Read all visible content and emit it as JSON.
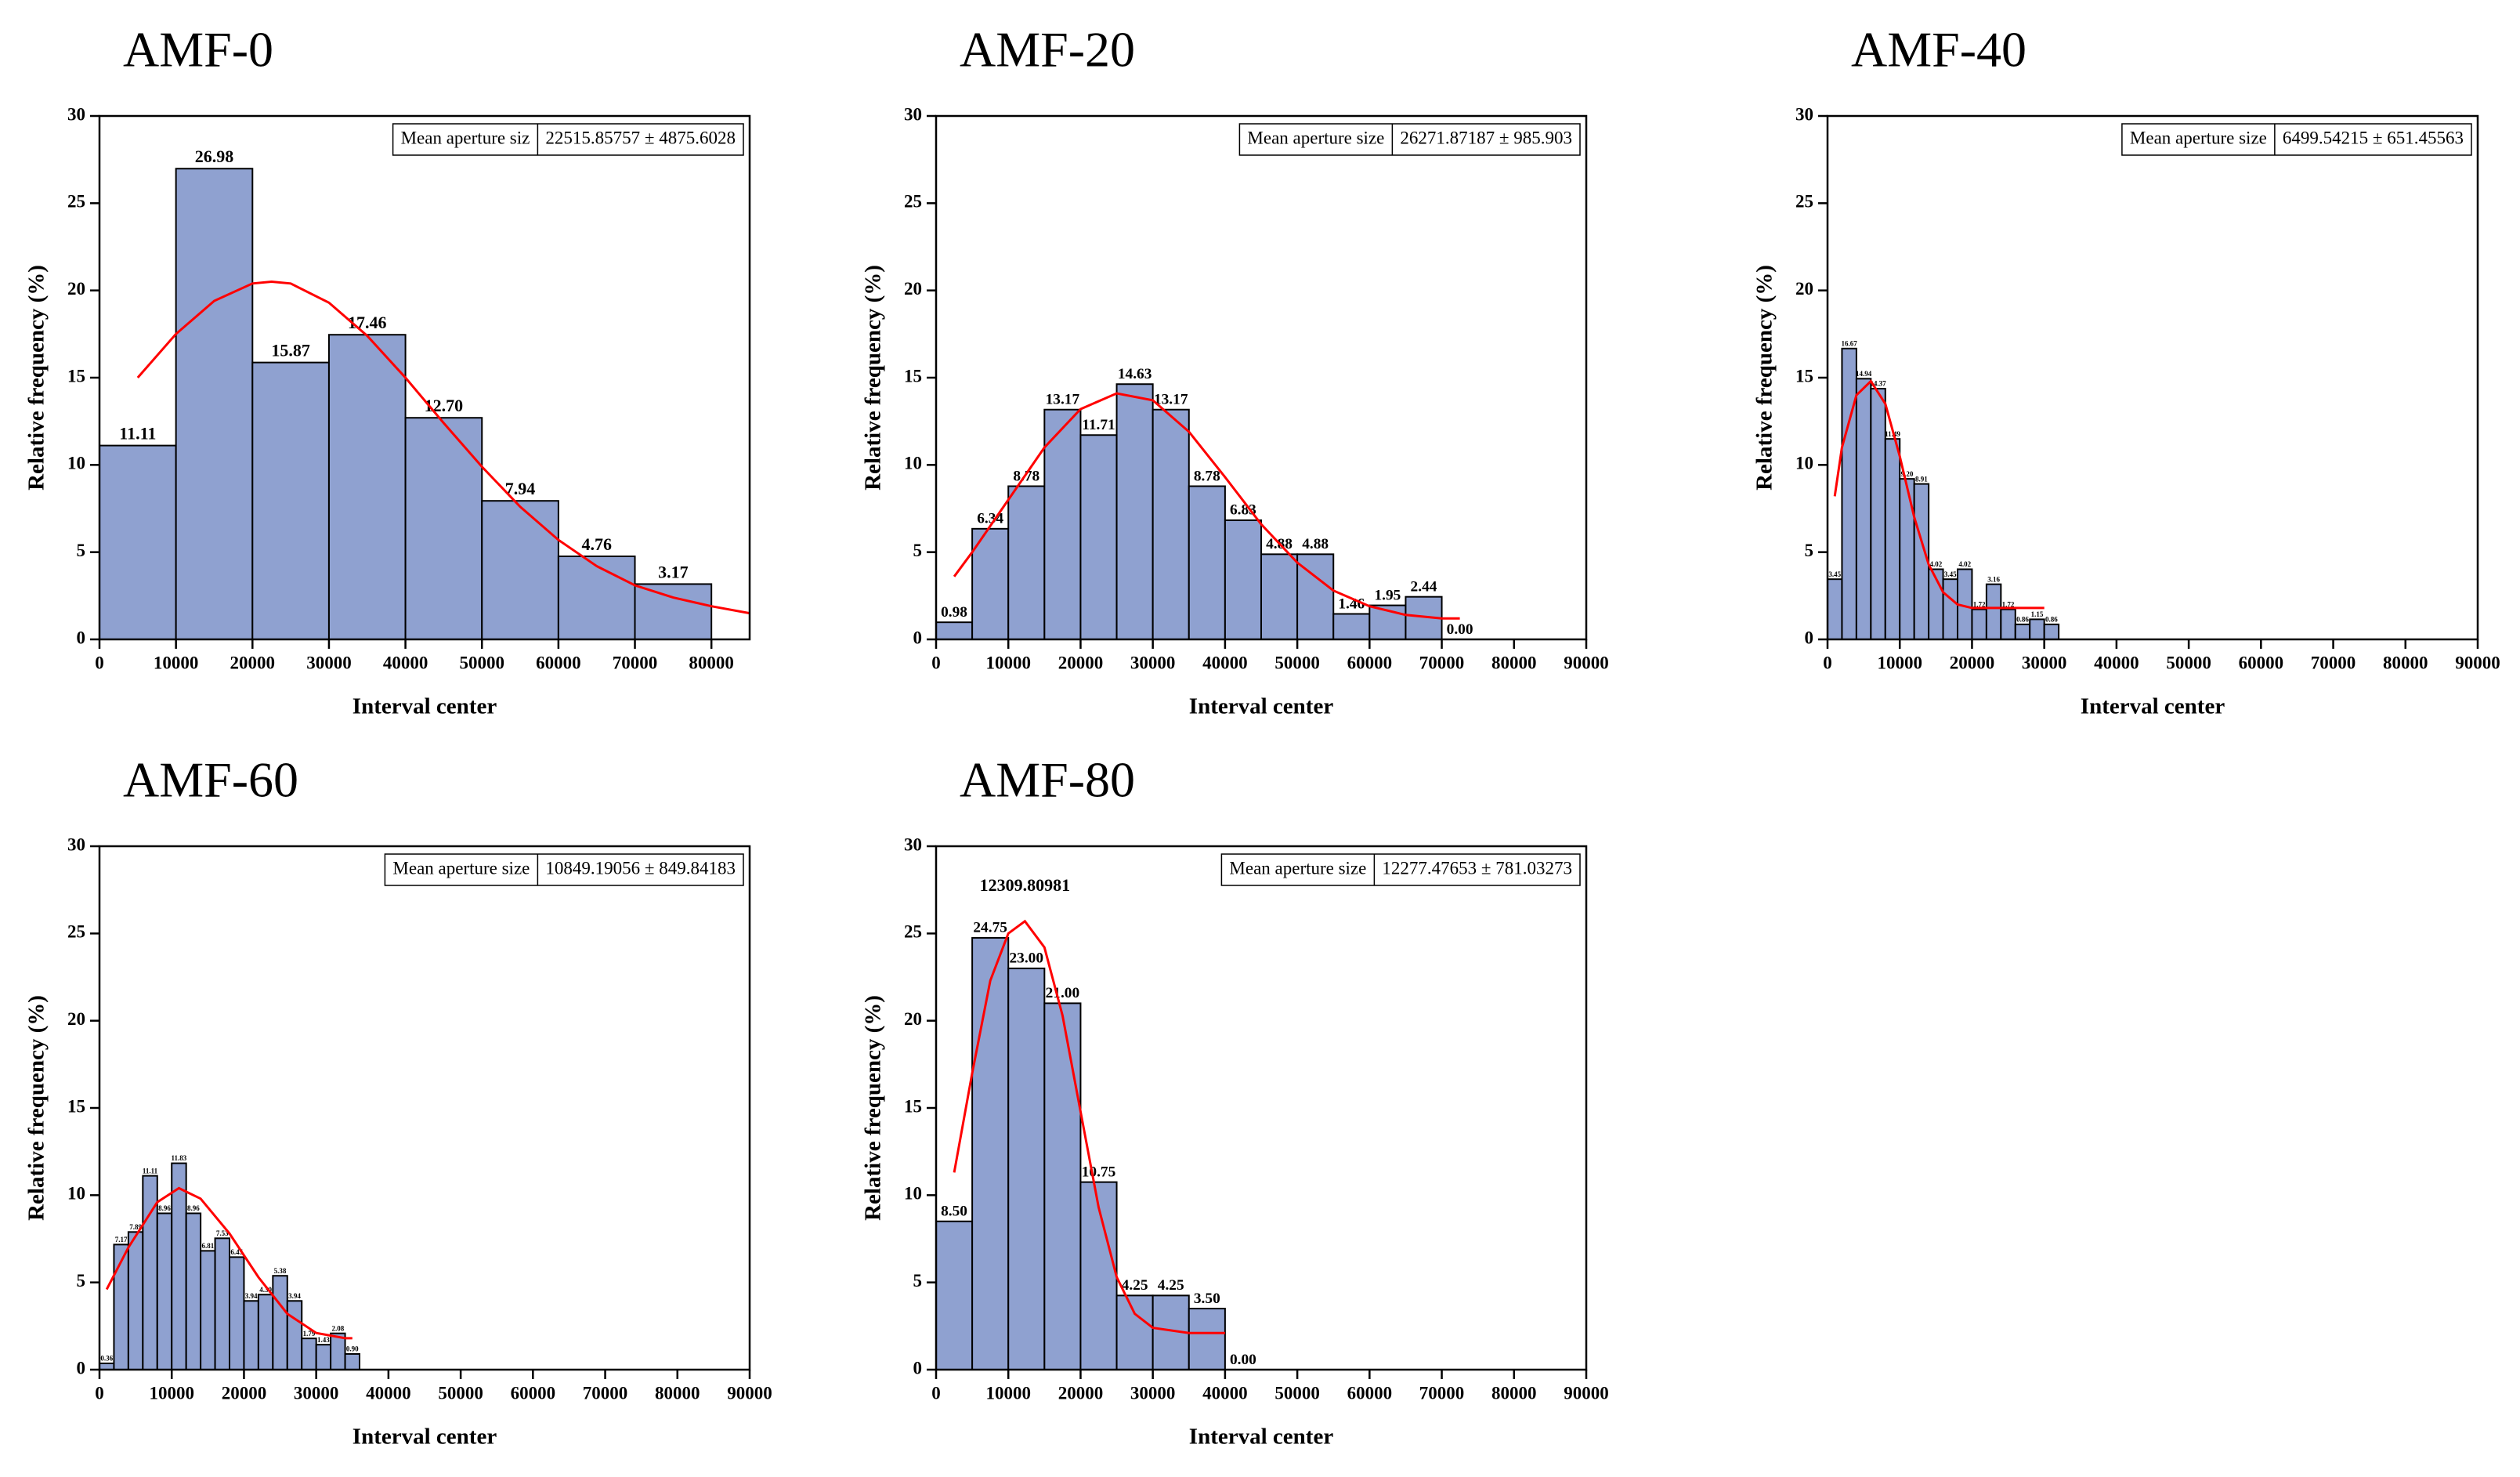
{
  "chart_data": [
    {
      "type": "histogram",
      "title": "AMF-0",
      "xlabel": "Interval center",
      "ylabel": "Relative frequency (%)",
      "bins": [
        0,
        10000,
        20000,
        30000,
        40000,
        50000,
        60000,
        70000,
        80000
      ],
      "values": [
        11.11,
        26.98,
        15.87,
        17.46,
        12.7,
        7.94,
        4.76,
        3.17
      ],
      "value_labels": [
        "11.11",
        "26.98",
        "15.87",
        "17.46",
        "12.70",
        "7.94",
        "4.76",
        "3.17"
      ],
      "color": "#8fa1d0",
      "xlim": [
        0,
        85000
      ],
      "xticks": [
        0,
        10000,
        20000,
        30000,
        40000,
        50000,
        60000,
        70000,
        80000
      ],
      "ylim": [
        0,
        30
      ],
      "yticks": [
        0,
        5,
        10,
        15,
        20,
        25,
        30
      ],
      "annotation": [
        "Mean aperture siz",
        "22515.85757 ± 4875.6028"
      ],
      "fit": {
        "color": "#ff0000",
        "x": [
          5000,
          10000,
          15000,
          20000,
          22500,
          25000,
          30000,
          35000,
          40000,
          45000,
          50000,
          55000,
          60000,
          65000,
          70000,
          75000,
          80000,
          85000
        ],
        "y": [
          15.0,
          17.5,
          19.4,
          20.4,
          20.5,
          20.4,
          19.3,
          17.4,
          15.0,
          12.4,
          9.9,
          7.6,
          5.7,
          4.2,
          3.1,
          2.4,
          1.9,
          1.5
        ]
      }
    },
    {
      "type": "histogram",
      "title": "AMF-20",
      "xlabel": "Interval center",
      "ylabel": "Relative frequency (%)",
      "bins": [
        0,
        5000,
        10000,
        15000,
        20000,
        25000,
        30000,
        35000,
        40000,
        45000,
        50000,
        55000,
        60000,
        65000,
        70000,
        75000
      ],
      "values": [
        0.98,
        6.34,
        8.78,
        13.17,
        11.71,
        14.63,
        13.17,
        8.78,
        6.83,
        4.88,
        4.88,
        1.46,
        1.95,
        2.44,
        0.0
      ],
      "value_labels": [
        "0.98",
        "6.34",
        "8.78",
        "13.17",
        "11.71",
        "14.63",
        "13.17",
        "8.78",
        "6.83",
        "4.88",
        "4.88",
        "1.46",
        "1.95",
        "2.44",
        "0.00"
      ],
      "color": "#8fa1d0",
      "xlim": [
        0,
        90000
      ],
      "xticks": [
        0,
        10000,
        20000,
        30000,
        40000,
        50000,
        60000,
        70000,
        80000,
        90000
      ],
      "ylim": [
        0,
        30
      ],
      "yticks": [
        0,
        5,
        10,
        15,
        20,
        25,
        30
      ],
      "annotation": [
        "Mean aperture size",
        "26271.87187 ± 985.903"
      ],
      "fit": {
        "color": "#ff0000",
        "x": [
          2500,
          5000,
          10000,
          15000,
          20000,
          25000,
          30000,
          35000,
          40000,
          45000,
          50000,
          55000,
          60000,
          65000,
          70000,
          72500
        ],
        "y": [
          3.6,
          5.0,
          8.0,
          11.0,
          13.2,
          14.1,
          13.7,
          11.9,
          9.3,
          6.6,
          4.4,
          2.8,
          1.9,
          1.4,
          1.2,
          1.2
        ]
      }
    },
    {
      "type": "histogram",
      "title": "AMF-40",
      "xlabel": "Interval center",
      "ylabel": "Relative frequency (%)",
      "bins": [
        0,
        2000,
        4000,
        6000,
        8000,
        10000,
        12000,
        14000,
        16000,
        18000,
        20000,
        22000,
        24000,
        26000,
        28000,
        30000,
        32000
      ],
      "values": [
        3.45,
        16.67,
        14.94,
        14.37,
        11.49,
        9.2,
        8.91,
        4.02,
        3.45,
        4.02,
        1.72,
        3.16,
        1.72,
        0.86,
        1.15,
        0.86
      ],
      "value_labels": [
        "3.45",
        "16.67",
        "14.94",
        "14.37",
        "11.49",
        "9.20",
        "8.91",
        "4.02",
        "3.45",
        "4.02",
        "1.72",
        "3.16",
        "1.72",
        "0.86",
        "1.15",
        "0.86"
      ],
      "color": "#8fa1d0",
      "xlim": [
        0,
        90000
      ],
      "xticks": [
        0,
        10000,
        20000,
        30000,
        40000,
        50000,
        60000,
        70000,
        80000,
        90000
      ],
      "ylim": [
        0,
        30
      ],
      "yticks": [
        0,
        5,
        10,
        15,
        20,
        25,
        30
      ],
      "annotation": [
        "Mean aperture size",
        "6499.54215 ± 651.45563"
      ],
      "fit": {
        "color": "#ff0000",
        "x": [
          1000,
          2000,
          4000,
          6000,
          8000,
          10000,
          12000,
          14000,
          16000,
          18000,
          20000,
          25000,
          30000
        ],
        "y": [
          8.2,
          11.0,
          14.0,
          14.8,
          13.5,
          10.5,
          7.0,
          4.3,
          2.7,
          2.0,
          1.8,
          1.8,
          1.8
        ]
      }
    },
    {
      "type": "histogram",
      "title": "AMF-60",
      "xlabel": "Interval center",
      "ylabel": "Relative frequency (%)",
      "bins": [
        0,
        2000,
        4000,
        6000,
        8000,
        10000,
        12000,
        14000,
        16000,
        18000,
        20000,
        22000,
        24000,
        26000,
        28000,
        30000,
        32000,
        34000,
        36000
      ],
      "values": [
        0.36,
        7.17,
        7.89,
        11.11,
        8.96,
        11.83,
        8.96,
        6.81,
        7.53,
        6.45,
        3.94,
        4.3,
        5.38,
        3.94,
        1.79,
        1.43,
        2.08,
        0.9
      ],
      "value_labels": [
        "0.36",
        "7.17",
        "7.89",
        "11.11",
        "8.96",
        "11.83",
        "8.96",
        "6.81",
        "7.53",
        "6.45",
        "3.94",
        "4.30",
        "5.38",
        "3.94",
        "1.79",
        "1.43",
        "2.08",
        "0.90"
      ],
      "color": "#8fa1d0",
      "xlim": [
        0,
        90000
      ],
      "xticks": [
        0,
        10000,
        20000,
        30000,
        40000,
        50000,
        60000,
        70000,
        80000,
        90000
      ],
      "ylim": [
        0,
        30
      ],
      "yticks": [
        0,
        5,
        10,
        15,
        20,
        25,
        30
      ],
      "annotation": [
        "Mean aperture size",
        "10849.19056 ± 849.84183"
      ],
      "fit": {
        "color": "#ff0000",
        "x": [
          1000,
          4000,
          8000,
          11000,
          14000,
          18000,
          22000,
          26000,
          30000,
          34000,
          35000
        ],
        "y": [
          4.6,
          7.0,
          9.6,
          10.4,
          9.8,
          7.8,
          5.3,
          3.2,
          2.1,
          1.8,
          1.8
        ]
      }
    },
    {
      "type": "histogram",
      "title": "AMF-80",
      "xlabel": "Interval center",
      "ylabel": "Relative frequency (%)",
      "bins": [
        0,
        5000,
        10000,
        15000,
        20000,
        25000,
        30000,
        35000,
        40000,
        45000
      ],
      "values": [
        8.5,
        24.75,
        23.0,
        21.0,
        10.75,
        4.25,
        4.25,
        3.5,
        0.0
      ],
      "value_labels": [
        "8.50",
        "24.75",
        "23.00",
        "21.00",
        "10.75",
        "4.25",
        "4.25",
        "3.50",
        "0.00"
      ],
      "color": "#8fa1d0",
      "xlim": [
        0,
        90000
      ],
      "xticks": [
        0,
        10000,
        20000,
        30000,
        40000,
        50000,
        60000,
        70000,
        80000,
        90000
      ],
      "ylim": [
        0,
        30
      ],
      "yticks": [
        0,
        5,
        10,
        15,
        20,
        25,
        30
      ],
      "annotation": [
        "Mean aperture size",
        "12277.47653 ± 781.03273"
      ],
      "peak_label": "12309.80981",
      "fit": {
        "color": "#ff0000",
        "x": [
          2500,
          5000,
          7500,
          10000,
          12300,
          15000,
          17500,
          20000,
          22500,
          25000,
          27500,
          30000,
          35000,
          40000
        ],
        "y": [
          11.3,
          17.0,
          22.3,
          25.0,
          25.7,
          24.2,
          20.3,
          14.8,
          9.3,
          5.3,
          3.2,
          2.4,
          2.1,
          2.1
        ]
      }
    }
  ]
}
